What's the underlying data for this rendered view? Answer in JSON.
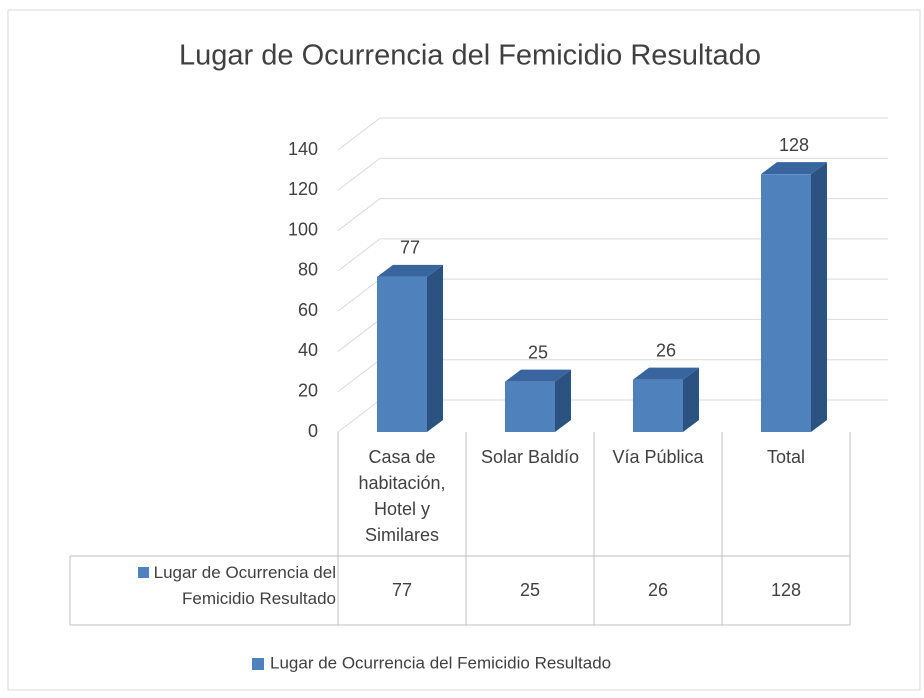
{
  "chart_data": {
    "type": "bar",
    "title": "Lugar de Ocurrencia del Femicidio Resultado",
    "categories": [
      "Casa de habitación, Hotel y Similares",
      "Solar Baldío",
      "Vía Pública",
      "Total"
    ],
    "series": [
      {
        "name": "Lugar de Ocurrencia del Femicidio Resultado",
        "color": "#4f81bd",
        "values": [
          77,
          25,
          26,
          128
        ]
      }
    ],
    "ylim": [
      0,
      140
    ],
    "yticks": [
      0,
      20,
      40,
      60,
      80,
      100,
      120,
      140
    ],
    "grid": true,
    "legend": "bottom"
  }
}
